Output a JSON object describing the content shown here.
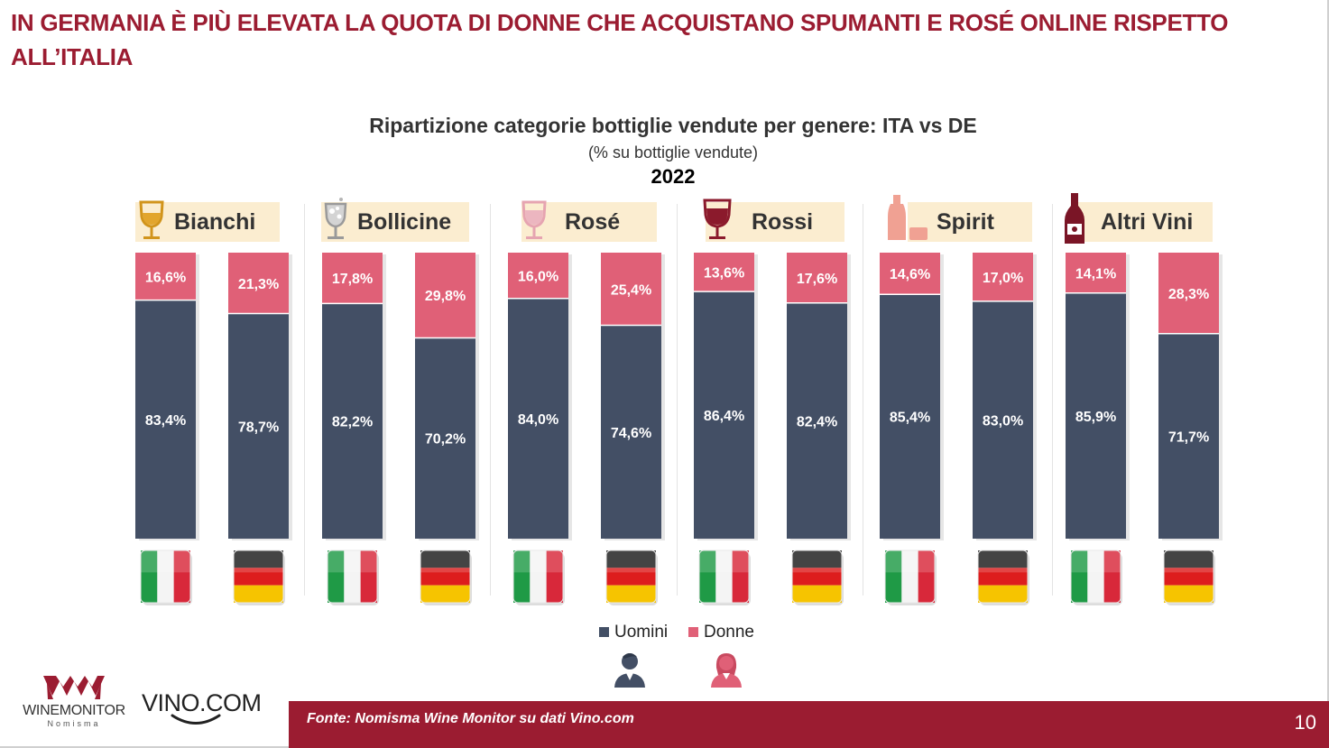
{
  "slide": {
    "title": "IN GERMANIA È PIÙ ELEVATA LA QUOTA DI DONNE CHE ACQUISTANO SPUMANTI E ROSÉ ONLINE RISPETTO ALL’ITALIA",
    "page_number": "10"
  },
  "footer": {
    "source": "Fonte: Nomisma Wine Monitor su dati Vino.com"
  },
  "logos": {
    "winemonitor": "WINEMONITOR",
    "winemonitor_sub": "Nomisma",
    "vino": "VINO.COM"
  },
  "icons": [
    "wine-glass-icon",
    "sparkling-glass-icon",
    "rose-glass-icon",
    "red-wine-glass-icon",
    "spirit-bottle-icon",
    "wine-bottle-icon",
    "italy-flag-icon",
    "germany-flag-icon",
    "man-icon",
    "woman-icon"
  ],
  "colors": {
    "uomini": "#434f65",
    "donne": "#e06077",
    "brand": "#9b1c31",
    "category_bg": "#fbedd0"
  },
  "chart_data": {
    "type": "bar",
    "stacked": true,
    "title": "Ripartizione categorie bottiglie vendute per genere: ITA vs DE",
    "subtitle": "(% su bottiglie vendute)",
    "year": "2022",
    "groups": [
      "Bianchi",
      "Bollicine",
      "Rosé",
      "Rossi",
      "Spirit",
      "Altri Vini"
    ],
    "categories": [
      "ITA",
      "DE"
    ],
    "series": [
      {
        "name": "Uomini",
        "color": "#434f65",
        "values": [
          [
            83.4,
            78.7
          ],
          [
            82.2,
            70.2
          ],
          [
            84.0,
            74.6
          ],
          [
            86.4,
            82.4
          ],
          [
            85.4,
            83.0
          ],
          [
            85.9,
            71.7
          ]
        ],
        "labels": [
          [
            "83,4%",
            "78,7%"
          ],
          [
            "82,2%",
            "70,2%"
          ],
          [
            "84,0%",
            "74,6%"
          ],
          [
            "86,4%",
            "82,4%"
          ],
          [
            "85,4%",
            "83,0%"
          ],
          [
            "85,9%",
            "71,7%"
          ]
        ]
      },
      {
        "name": "Donne",
        "color": "#e06077",
        "values": [
          [
            16.6,
            21.3
          ],
          [
            17.8,
            29.8
          ],
          [
            16.0,
            25.4
          ],
          [
            13.6,
            17.6
          ],
          [
            14.6,
            17.0
          ],
          [
            14.1,
            28.3
          ]
        ],
        "labels": [
          [
            "16,6%",
            "21,3%"
          ],
          [
            "17,8%",
            "29,8%"
          ],
          [
            "16,0%",
            "25,4%"
          ],
          [
            "13,6%",
            "17,6%"
          ],
          [
            "14,6%",
            "17,0%"
          ],
          [
            "14,1%",
            "28,3%"
          ]
        ]
      }
    ],
    "ylim": [
      0,
      100
    ],
    "legend_position": "bottom"
  }
}
